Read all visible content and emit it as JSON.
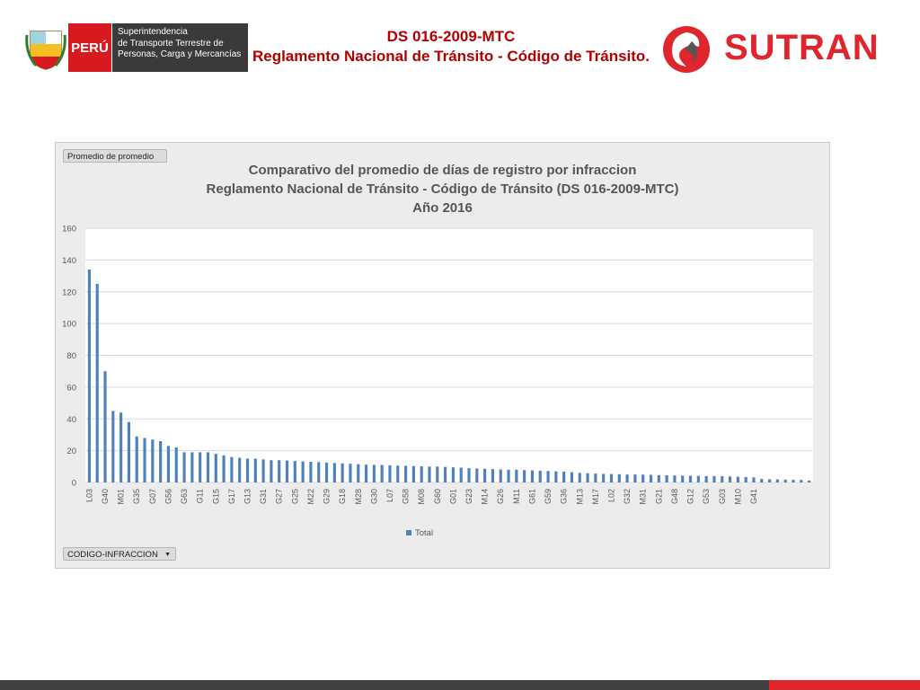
{
  "header": {
    "peru_label": "PERÚ",
    "agency_lines": [
      "Superintendencia",
      "de Transporte Terrestre de",
      "Personas, Carga y Mercancías"
    ],
    "crest_caption": "REPÚBLICA DEL PERÚ",
    "title_line1": "DS 016-2009-MTC",
    "title_line2": "Reglamento Nacional de Tránsito - Código de Tránsito.",
    "logo_text": "SUTRAN",
    "colors": {
      "title": "#b00000",
      "peru_red": "#d71920",
      "logo_red": "#e0262d"
    }
  },
  "panel": {
    "measure_button": "Promedio de promedio",
    "field_button": "CODIGO-INFRACCION"
  },
  "chart_data": {
    "type": "bar",
    "title_lines": [
      "Comparativo del promedio de días de registro por infraccion",
      "Reglamento Nacional de Tránsito - Código de Tránsito (DS 016-2009-MTC)",
      "Año 2016"
    ],
    "xlabel": "",
    "ylabel": "",
    "ylim": [
      0,
      160
    ],
    "yticks": [
      0,
      20,
      40,
      60,
      80,
      100,
      120,
      140,
      160
    ],
    "grid": true,
    "legend_position": "bottom",
    "series": [
      {
        "name": "Total",
        "color": "#4f81bd",
        "values": [
          134,
          125,
          70,
          45,
          44,
          38,
          29,
          28,
          27,
          26,
          23,
          22,
          19,
          19,
          19,
          19,
          18,
          17,
          16,
          15.5,
          15,
          15,
          14.5,
          14,
          14,
          13.8,
          13.5,
          13.2,
          13,
          12.8,
          12.5,
          12.2,
          12,
          11.8,
          11.5,
          11.2,
          11,
          11,
          10.8,
          10.6,
          10.5,
          10.3,
          10.2,
          10,
          10,
          9.8,
          9.5,
          9.3,
          9,
          8.8,
          8.6,
          8.4,
          8.2,
          8,
          8,
          7.8,
          7.6,
          7.4,
          7.2,
          7,
          6.8,
          6.5,
          6,
          5.8,
          5.6,
          5.4,
          5.3,
          5.2,
          5,
          5,
          4.9,
          4.8,
          4.6,
          4.5,
          4.4,
          4.3,
          4.2,
          4.1,
          4,
          4,
          3.9,
          3.8,
          3.6,
          3.4,
          3.2,
          2.2,
          2,
          1.9,
          1.8,
          1.7,
          1.6,
          1.2
        ]
      }
    ],
    "category_count": 92,
    "tick_labels": [
      "L03",
      "G40",
      "M01",
      "G35",
      "G07",
      "G56",
      "G63",
      "G11",
      "G15",
      "G17",
      "G13",
      "G31",
      "G27",
      "G25",
      "M22",
      "G29",
      "G18",
      "M28",
      "G30",
      "L07",
      "G58",
      "M08",
      "G60",
      "G01",
      "G23",
      "M14",
      "G26",
      "M11",
      "G61",
      "G59",
      "G36",
      "M13",
      "M17",
      "L02",
      "G32",
      "M31",
      "G21",
      "G48",
      "G12",
      "G53",
      "G03",
      "M10",
      "G41"
    ]
  }
}
